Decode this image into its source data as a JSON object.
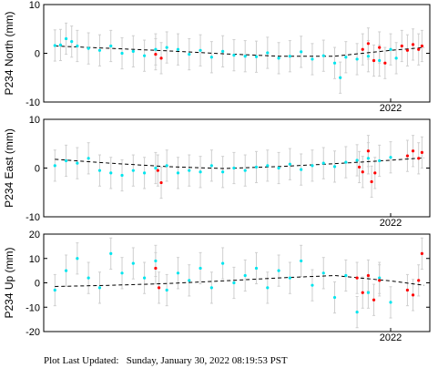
{
  "chart_data": [
    {
      "type": "scatter",
      "ylabel": "P234 North (mm)",
      "ylim": [
        -10,
        10
      ],
      "yticks": [
        -10,
        0,
        10
      ],
      "xlim": [
        2018.9,
        2022.35
      ],
      "xtick_labels": [
        {
          "x": 2022.0,
          "label": "2022"
        }
      ],
      "grid": false,
      "series": [
        {
          "color": "#00e5ee",
          "points": [
            [
              2019.0,
              1.6
            ],
            [
              2019.05,
              1.7
            ],
            [
              2019.1,
              3.0
            ],
            [
              2019.15,
              2.4
            ],
            [
              2019.2,
              1.5
            ],
            [
              2019.3,
              1.0
            ],
            [
              2019.4,
              0.6
            ],
            [
              2019.5,
              1.5
            ],
            [
              2019.6,
              0.0
            ],
            [
              2019.7,
              0.4
            ],
            [
              2019.8,
              -0.5
            ],
            [
              2019.9,
              0.8
            ],
            [
              2020.0,
              1.2
            ],
            [
              2020.1,
              0.8
            ],
            [
              2020.2,
              -0.2
            ],
            [
              2020.3,
              0.6
            ],
            [
              2020.4,
              -0.8
            ],
            [
              2020.5,
              0.4
            ],
            [
              2020.6,
              -0.4
            ],
            [
              2020.7,
              -0.6
            ],
            [
              2020.8,
              -0.7
            ],
            [
              2020.9,
              0.1
            ],
            [
              2021.0,
              -1.0
            ],
            [
              2021.1,
              -0.6
            ],
            [
              2021.2,
              0.3
            ],
            [
              2021.3,
              -1.2
            ],
            [
              2021.4,
              -0.5
            ],
            [
              2021.5,
              -2.0
            ],
            [
              2021.55,
              -5.0
            ],
            [
              2021.6,
              -0.8
            ],
            [
              2021.7,
              -1.2
            ],
            [
              2021.8,
              -0.6
            ],
            [
              2021.9,
              -1.5
            ],
            [
              2022.0,
              0.8
            ],
            [
              2022.05,
              -1.0
            ]
          ]
        },
        {
          "color": "#ff0000",
          "points": [
            [
              2019.9,
              -0.2
            ],
            [
              2019.95,
              -1.0
            ],
            [
              2021.75,
              0.8
            ],
            [
              2021.8,
              2.0
            ],
            [
              2021.85,
              -1.5
            ],
            [
              2021.9,
              1.2
            ],
            [
              2021.95,
              -2.0
            ],
            [
              2022.1,
              1.5
            ],
            [
              2022.15,
              0.6
            ],
            [
              2022.2,
              1.8
            ],
            [
              2022.25,
              0.8
            ],
            [
              2022.28,
              1.5
            ]
          ]
        }
      ],
      "trend": {
        "style": "dashed",
        "color": "#000000",
        "points": [
          [
            2019.0,
            1.5
          ],
          [
            2019.5,
            1.0
          ],
          [
            2020.0,
            0.5
          ],
          [
            2020.5,
            -0.1
          ],
          [
            2021.0,
            -0.6
          ],
          [
            2021.5,
            -0.6
          ],
          [
            2022.0,
            0.6
          ],
          [
            2022.3,
            1.2
          ]
        ]
      }
    },
    {
      "type": "scatter",
      "ylabel": "P234 East (mm)",
      "ylim": [
        -10,
        10
      ],
      "yticks": [
        -10,
        0,
        10
      ],
      "xlim": [
        2018.9,
        2022.35
      ],
      "xtick_labels": [
        {
          "x": 2022.0,
          "label": "2022"
        }
      ],
      "grid": false,
      "series": [
        {
          "color": "#00e5ee",
          "points": [
            [
              2019.0,
              0.5
            ],
            [
              2019.1,
              1.5
            ],
            [
              2019.2,
              1.0
            ],
            [
              2019.3,
              2.0
            ],
            [
              2019.4,
              -0.5
            ],
            [
              2019.5,
              -1.0
            ],
            [
              2019.6,
              -1.5
            ],
            [
              2019.7,
              -0.5
            ],
            [
              2019.8,
              -1.0
            ],
            [
              2019.9,
              0.0
            ],
            [
              2020.0,
              0.5
            ],
            [
              2020.1,
              -1.0
            ],
            [
              2020.2,
              -0.5
            ],
            [
              2020.3,
              -0.8
            ],
            [
              2020.4,
              0.5
            ],
            [
              2020.5,
              -0.8
            ],
            [
              2020.6,
              0.0
            ],
            [
              2020.7,
              -0.5
            ],
            [
              2020.8,
              0.2
            ],
            [
              2020.9,
              0.5
            ],
            [
              2021.0,
              0.0
            ],
            [
              2021.1,
              0.8
            ],
            [
              2021.2,
              -0.3
            ],
            [
              2021.3,
              0.5
            ],
            [
              2021.4,
              1.0
            ],
            [
              2021.5,
              0.3
            ],
            [
              2021.6,
              1.2
            ],
            [
              2021.7,
              1.6
            ],
            [
              2021.8,
              2.0
            ],
            [
              2021.9,
              1.5
            ],
            [
              2022.0,
              2.2
            ]
          ]
        },
        {
          "color": "#ff0000",
          "points": [
            [
              2019.92,
              -0.5
            ],
            [
              2019.95,
              -3.0
            ],
            [
              2021.72,
              0.2
            ],
            [
              2021.75,
              -0.8
            ],
            [
              2021.8,
              3.5
            ],
            [
              2021.83,
              -2.8
            ],
            [
              2021.86,
              -1.0
            ],
            [
              2022.15,
              2.5
            ],
            [
              2022.2,
              3.5
            ],
            [
              2022.25,
              2.0
            ],
            [
              2022.28,
              3.2
            ]
          ]
        }
      ],
      "trend": {
        "style": "dashed",
        "color": "#000000",
        "points": [
          [
            2019.0,
            1.8
          ],
          [
            2019.5,
            1.0
          ],
          [
            2020.0,
            0.3
          ],
          [
            2020.5,
            -0.1
          ],
          [
            2021.0,
            0.3
          ],
          [
            2021.5,
            0.9
          ],
          [
            2022.0,
            1.6
          ],
          [
            2022.3,
            2.1
          ]
        ]
      }
    },
    {
      "type": "scatter",
      "ylabel": "P234 Up (mm)",
      "ylim": [
        -20,
        20
      ],
      "yticks": [
        -20,
        -10,
        0,
        10,
        20
      ],
      "xlim": [
        2018.9,
        2022.35
      ],
      "xtick_labels": [
        {
          "x": 2022.0,
          "label": "2022"
        }
      ],
      "grid": false,
      "series": [
        {
          "color": "#00e5ee",
          "points": [
            [
              2019.0,
              -3.0
            ],
            [
              2019.1,
              5.0
            ],
            [
              2019.2,
              10.0
            ],
            [
              2019.3,
              2.0
            ],
            [
              2019.4,
              -2.0
            ],
            [
              2019.5,
              12.0
            ],
            [
              2019.6,
              4.0
            ],
            [
              2019.7,
              8.0
            ],
            [
              2019.8,
              2.0
            ],
            [
              2019.9,
              9.0
            ],
            [
              2020.0,
              -3.0
            ],
            [
              2020.1,
              4.0
            ],
            [
              2020.2,
              1.0
            ],
            [
              2020.3,
              6.0
            ],
            [
              2020.4,
              -2.0
            ],
            [
              2020.5,
              8.0
            ],
            [
              2020.6,
              0.0
            ],
            [
              2020.7,
              3.0
            ],
            [
              2020.8,
              6.0
            ],
            [
              2020.9,
              -2.0
            ],
            [
              2021.0,
              5.0
            ],
            [
              2021.1,
              2.0
            ],
            [
              2021.2,
              9.0
            ],
            [
              2021.3,
              -1.0
            ],
            [
              2021.4,
              4.0
            ],
            [
              2021.5,
              -6.0
            ],
            [
              2021.6,
              3.0
            ],
            [
              2021.7,
              -12.0
            ],
            [
              2021.8,
              -4.0
            ],
            [
              2021.9,
              2.0
            ],
            [
              2022.0,
              -8.0
            ]
          ]
        },
        {
          "color": "#ff0000",
          "points": [
            [
              2019.9,
              6.0
            ],
            [
              2019.93,
              -2.0
            ],
            [
              2021.7,
              2.0
            ],
            [
              2021.75,
              -4.0
            ],
            [
              2021.8,
              3.0
            ],
            [
              2021.85,
              -7.0
            ],
            [
              2021.9,
              1.0
            ],
            [
              2022.15,
              -3.0
            ],
            [
              2022.2,
              -5.0
            ],
            [
              2022.25,
              1.0
            ],
            [
              2022.28,
              12.0
            ]
          ]
        }
      ],
      "trend": {
        "style": "dashed",
        "color": "#000000",
        "points": [
          [
            2019.0,
            -1.5
          ],
          [
            2019.5,
            -1.0
          ],
          [
            2020.0,
            -0.3
          ],
          [
            2020.5,
            0.8
          ],
          [
            2021.0,
            2.0
          ],
          [
            2021.5,
            3.0
          ],
          [
            2022.0,
            0.8
          ],
          [
            2022.3,
            -1.0
          ]
        ]
      }
    }
  ],
  "footer": {
    "label": "Plot Last Updated:",
    "value": "Sunday, January 30, 2022 08:19:53 PST"
  }
}
